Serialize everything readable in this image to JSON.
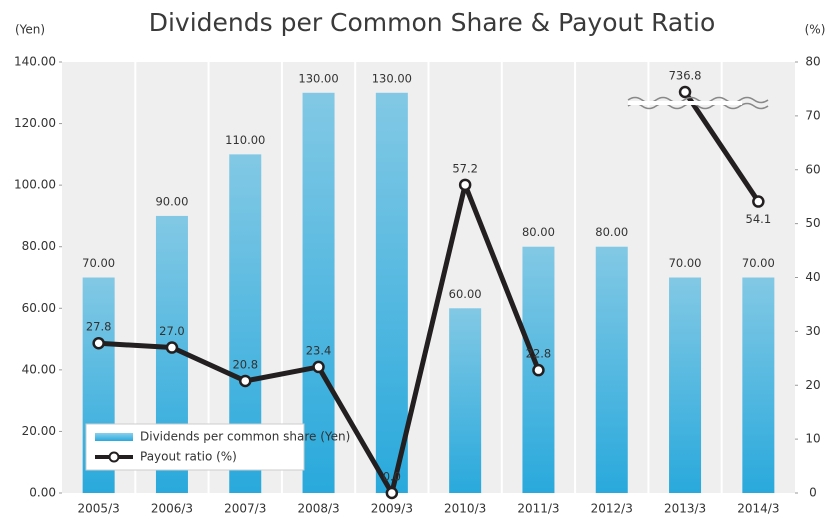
{
  "chart_data": {
    "type": "bar+line",
    "title": "Dividends per Common Share & Payout Ratio",
    "y_label": "(Yen)",
    "y2_label": "(%)",
    "categories": [
      "2005/3",
      "2006/3",
      "2007/3",
      "2008/3",
      "2009/3",
      "2010/3",
      "2011/3",
      "2012/3",
      "2013/3",
      "2014/3"
    ],
    "series": [
      {
        "name": "Dividends per common share (Yen)",
        "type": "bar",
        "color": "#29a9dc",
        "values": [
          70,
          90,
          110,
          130,
          130,
          60,
          80,
          80,
          70,
          70
        ],
        "value_labels": [
          "70.00",
          "90.00",
          "110.00",
          "130.00",
          "130.00",
          "60.00",
          "80.00",
          "80.00",
          "70.00",
          "70.00"
        ]
      },
      {
        "name": "Payout ratio (%)",
        "type": "line",
        "axis": "y2",
        "color": "#231f20",
        "values": [
          27.8,
          27.0,
          20.8,
          23.4,
          0.0,
          57.2,
          22.8,
          null,
          736.8,
          54.1
        ],
        "value_labels": [
          "27.8",
          "27.0",
          "20.8",
          "23.4",
          "0.0",
          "57.2",
          "22.8",
          null,
          "736.8",
          "54.1"
        ]
      }
    ],
    "ylim": [
      0,
      140
    ],
    "yticks": [
      {
        "value": 0,
        "label": "0.00"
      },
      {
        "value": 20,
        "label": "20.00"
      },
      {
        "value": 40,
        "label": "40.00"
      },
      {
        "value": 60,
        "label": "60.00"
      },
      {
        "value": 80,
        "label": "80.00"
      },
      {
        "value": 100,
        "label": "100.00"
      },
      {
        "value": 120,
        "label": "120.00"
      },
      {
        "value": 140,
        "label": "140.00"
      }
    ],
    "y2lim": [
      0,
      80
    ],
    "y2ticks": [
      0,
      10,
      20,
      30,
      40,
      50,
      60,
      70,
      80
    ],
    "axis_break": true,
    "legend": "lower left"
  }
}
